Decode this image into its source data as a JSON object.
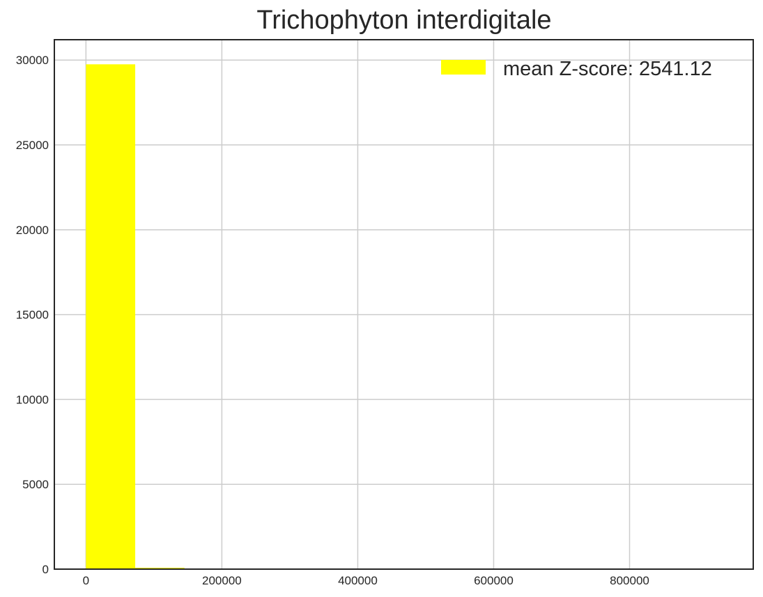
{
  "chart_data": {
    "type": "bar",
    "title": "Trichophyton interdigitale",
    "xlabel": "",
    "ylabel": "",
    "xlim": [
      -46500,
      982000
    ],
    "ylim": [
      0,
      31200
    ],
    "x_ticks": [
      0,
      200000,
      400000,
      600000,
      800000
    ],
    "x_tick_labels": [
      "0",
      "200000",
      "400000",
      "600000",
      "800000"
    ],
    "y_ticks": [
      0,
      5000,
      10000,
      15000,
      20000,
      25000,
      30000
    ],
    "y_tick_labels": [
      "0",
      "5000",
      "10000",
      "15000",
      "20000",
      "25000",
      "30000"
    ],
    "bins": [
      {
        "x0": 0,
        "x1": 72500,
        "count": 29750
      },
      {
        "x0": 72500,
        "x1": 145000,
        "count": 80
      },
      {
        "x0": 145000,
        "x1": 217500,
        "count": 15
      },
      {
        "x0": 217500,
        "x1": 290000,
        "count": 8
      },
      {
        "x0": 290000,
        "x1": 362500,
        "count": 5
      },
      {
        "x0": 362500,
        "x1": 435000,
        "count": 4
      },
      {
        "x0": 435000,
        "x1": 507500,
        "count": 2
      },
      {
        "x0": 507500,
        "x1": 580000,
        "count": 2
      },
      {
        "x0": 580000,
        "x1": 652500,
        "count": 1
      },
      {
        "x0": 652500,
        "x1": 725000,
        "count": 1
      },
      {
        "x0": 725000,
        "x1": 797500,
        "count": 1
      },
      {
        "x0": 797500,
        "x1": 870000,
        "count": 1
      },
      {
        "x0": 870000,
        "x1": 942500,
        "count": 2
      }
    ],
    "bar_color": "#ffff00",
    "grid": true,
    "legend_position": "top-right",
    "series": [
      {
        "name": "mean Z-score: 2541.12",
        "color": "#ffff00"
      }
    ]
  }
}
